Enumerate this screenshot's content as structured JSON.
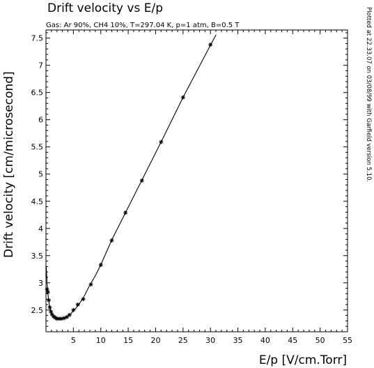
{
  "chart_data": {
    "type": "line",
    "title": "Drift velocity vs E/p",
    "subtitle": "Gas: Ar 90%, CH4 10%, T=297.04 K, p=1 atm, B=0.5 T",
    "xlabel": "E/p [V/cm.Torr]",
    "ylabel": "Drift velocity [cm/microsecond]",
    "side_note": "Plotted at 22.33.07 on 03/08/99 with Garfield version 5.10.",
    "xlim": [
      0,
      55
    ],
    "ylim": [
      2.1,
      7.65
    ],
    "x_ticks": [
      5,
      10,
      15,
      20,
      25,
      30,
      35,
      40,
      45,
      50,
      55
    ],
    "x_tick_labels": [
      "5",
      "10",
      "15",
      "20",
      "25",
      "30",
      "35",
      "40",
      "45",
      "50",
      "55"
    ],
    "y_ticks": [
      2.5,
      3,
      3.5,
      4,
      4.5,
      5,
      5.5,
      6,
      6.5,
      7,
      7.5
    ],
    "y_tick_labels": [
      "2.5",
      "3",
      "3.5",
      "4",
      "4.5",
      "5",
      "5.5",
      "6",
      "6.5",
      "7",
      "7.5"
    ],
    "grid": false,
    "series": [
      {
        "marker": "asterisk",
        "curve_x": [
          0.05,
          0.2,
          0.4,
          0.6,
          0.9,
          1.2,
          1.6,
          2.0,
          2.5,
          3.0,
          3.5,
          4.0,
          4.5,
          5.0,
          6.0,
          7.0,
          8.0,
          9.0,
          10.0,
          12.0,
          14.5,
          17.5,
          21.0,
          25.0,
          30.0,
          31.0
        ],
        "curve_y": [
          3.3,
          2.98,
          2.76,
          2.6,
          2.48,
          2.41,
          2.37,
          2.35,
          2.34,
          2.34,
          2.36,
          2.39,
          2.43,
          2.48,
          2.6,
          2.76,
          2.96,
          3.13,
          3.33,
          3.79,
          4.29,
          4.89,
          5.59,
          6.41,
          7.37,
          7.56
        ],
        "marker_x": [
          0.2,
          0.35,
          0.5,
          0.7,
          0.9,
          1.1,
          1.4,
          1.7,
          2.0,
          2.4,
          2.8,
          3.3,
          3.8,
          4.3,
          5.0,
          5.8,
          6.8,
          8.2,
          10.0,
          12.0,
          14.5,
          17.5,
          21.0,
          25.0,
          30.0
        ],
        "marker_y": [
          2.88,
          2.83,
          2.68,
          2.55,
          2.47,
          2.42,
          2.38,
          2.36,
          2.34,
          2.34,
          2.34,
          2.35,
          2.37,
          2.41,
          2.5,
          2.6,
          2.7,
          2.97,
          3.33,
          3.78,
          4.29,
          4.88,
          5.59,
          6.41,
          7.38
        ]
      }
    ]
  }
}
